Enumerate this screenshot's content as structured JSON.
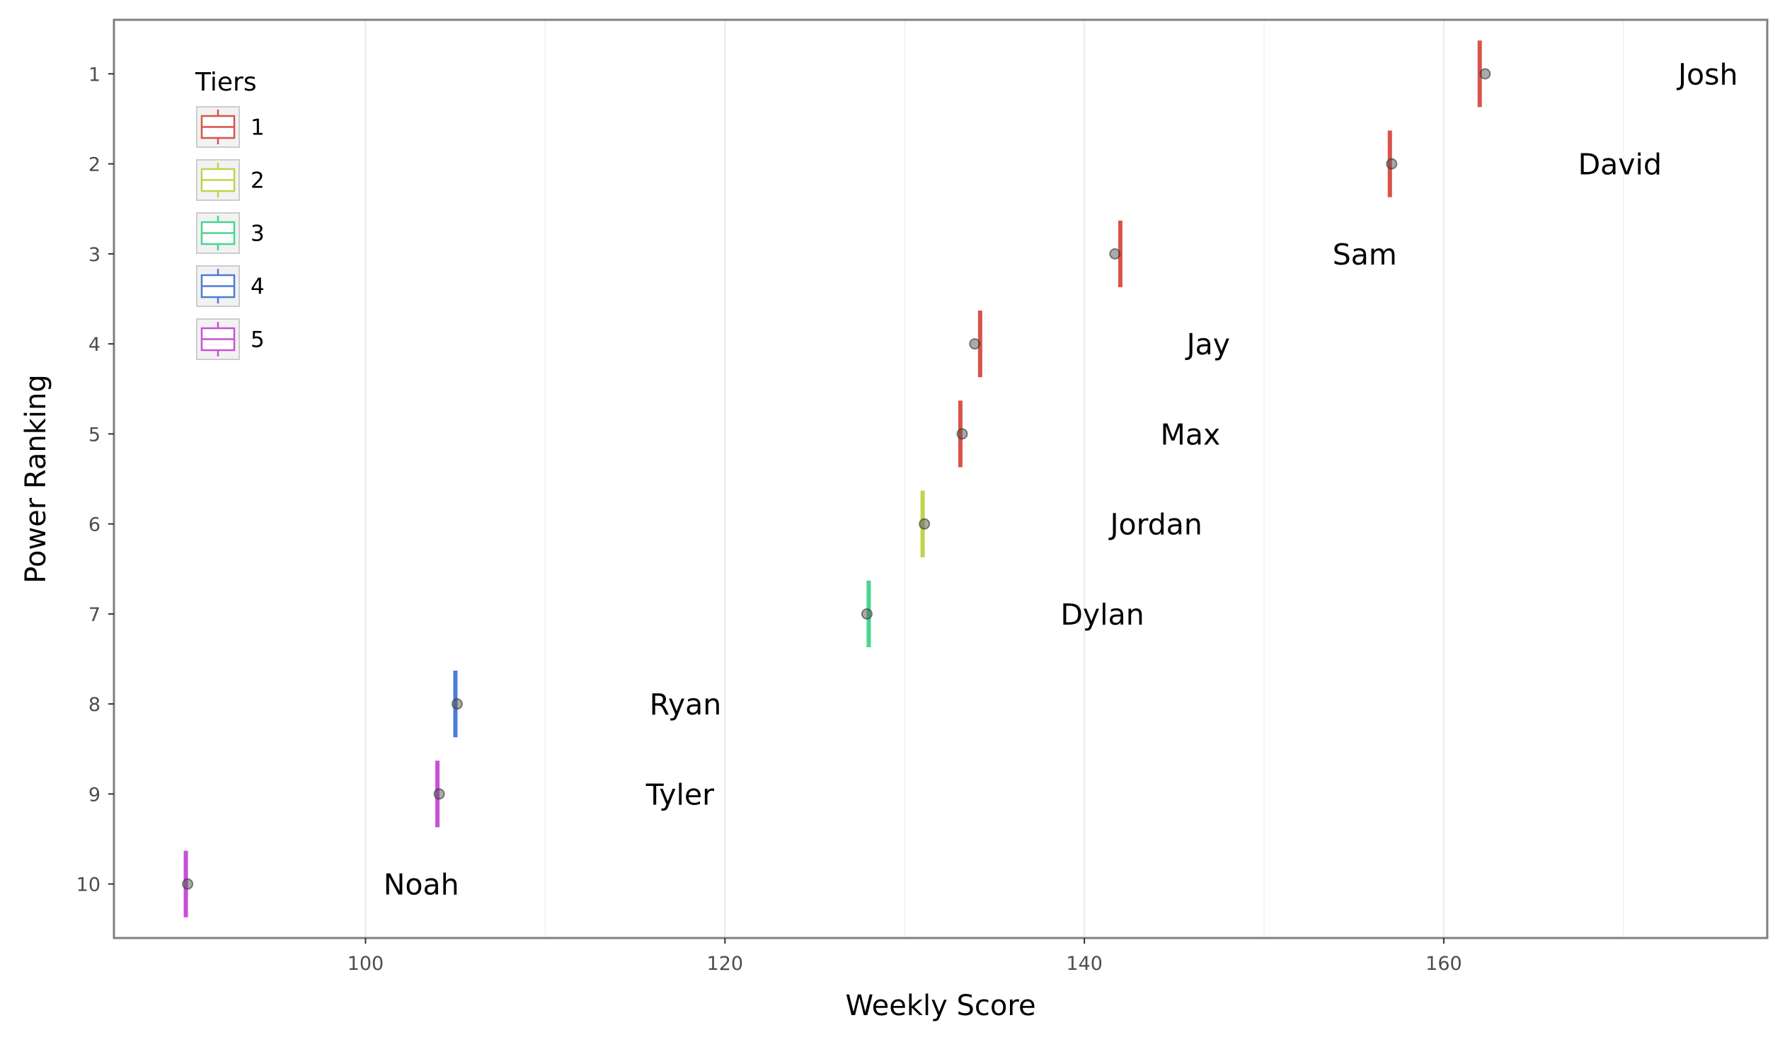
{
  "chart_data": {
    "type": "scatter",
    "title": "",
    "xlabel": "Weekly Score",
    "ylabel": "Power Ranking",
    "xlim": [
      86,
      178
    ],
    "ylim": [
      0.4,
      10.6
    ],
    "y_reversed": true,
    "x_ticks": [
      100,
      120,
      140,
      160
    ],
    "x_minor_ticks": [
      110,
      130,
      150,
      170
    ],
    "y_ticks": [
      1,
      2,
      3,
      4,
      5,
      6,
      7,
      8,
      9,
      10
    ],
    "grid": "vertical",
    "legend": {
      "title": "Tiers",
      "placement": "top-left",
      "entries": [
        {
          "label": "1",
          "color": "#d9534a"
        },
        {
          "label": "2",
          "color": "#bdd64b"
        },
        {
          "label": "3",
          "color": "#48d68e"
        },
        {
          "label": "4",
          "color": "#4a7dd6"
        },
        {
          "label": "5",
          "color": "#c850d8"
        }
      ]
    },
    "tier_colors": {
      "1": "#d9534a",
      "2": "#bdd64b",
      "3": "#48d68e",
      "4": "#4a7dd6",
      "5": "#c850d8"
    },
    "point_color": "#555555",
    "points": [
      {
        "name": "Josh",
        "rank": 1,
        "score": 162.3,
        "bar_score": 162.0,
        "tier": 1,
        "label_x": 174.7
      },
      {
        "name": "David",
        "rank": 2,
        "score": 157.1,
        "bar_score": 157.0,
        "tier": 1,
        "label_x": 169.8
      },
      {
        "name": "Sam",
        "rank": 3,
        "score": 141.7,
        "bar_score": 142.0,
        "tier": 1,
        "label_x": 155.6
      },
      {
        "name": "Jay",
        "rank": 4,
        "score": 133.9,
        "bar_score": 134.2,
        "tier": 1,
        "label_x": 146.9
      },
      {
        "name": "Max",
        "rank": 5,
        "score": 133.2,
        "bar_score": 133.1,
        "tier": 1,
        "label_x": 145.9
      },
      {
        "name": "Jordan",
        "rank": 6,
        "score": 131.1,
        "bar_score": 131.0,
        "tier": 2,
        "label_x": 144.0
      },
      {
        "name": "Dylan",
        "rank": 7,
        "score": 127.9,
        "bar_score": 128.0,
        "tier": 3,
        "label_x": 141.0
      },
      {
        "name": "Ryan",
        "rank": 8,
        "score": 105.1,
        "bar_score": 105.0,
        "tier": 4,
        "label_x": 117.8
      },
      {
        "name": "Tyler",
        "rank": 9,
        "score": 104.1,
        "bar_score": 104.0,
        "tier": 5,
        "label_x": 117.5
      },
      {
        "name": "Noah",
        "rank": 10,
        "score": 90.1,
        "bar_score": 90.0,
        "tier": 5,
        "label_x": 103.1
      }
    ]
  }
}
